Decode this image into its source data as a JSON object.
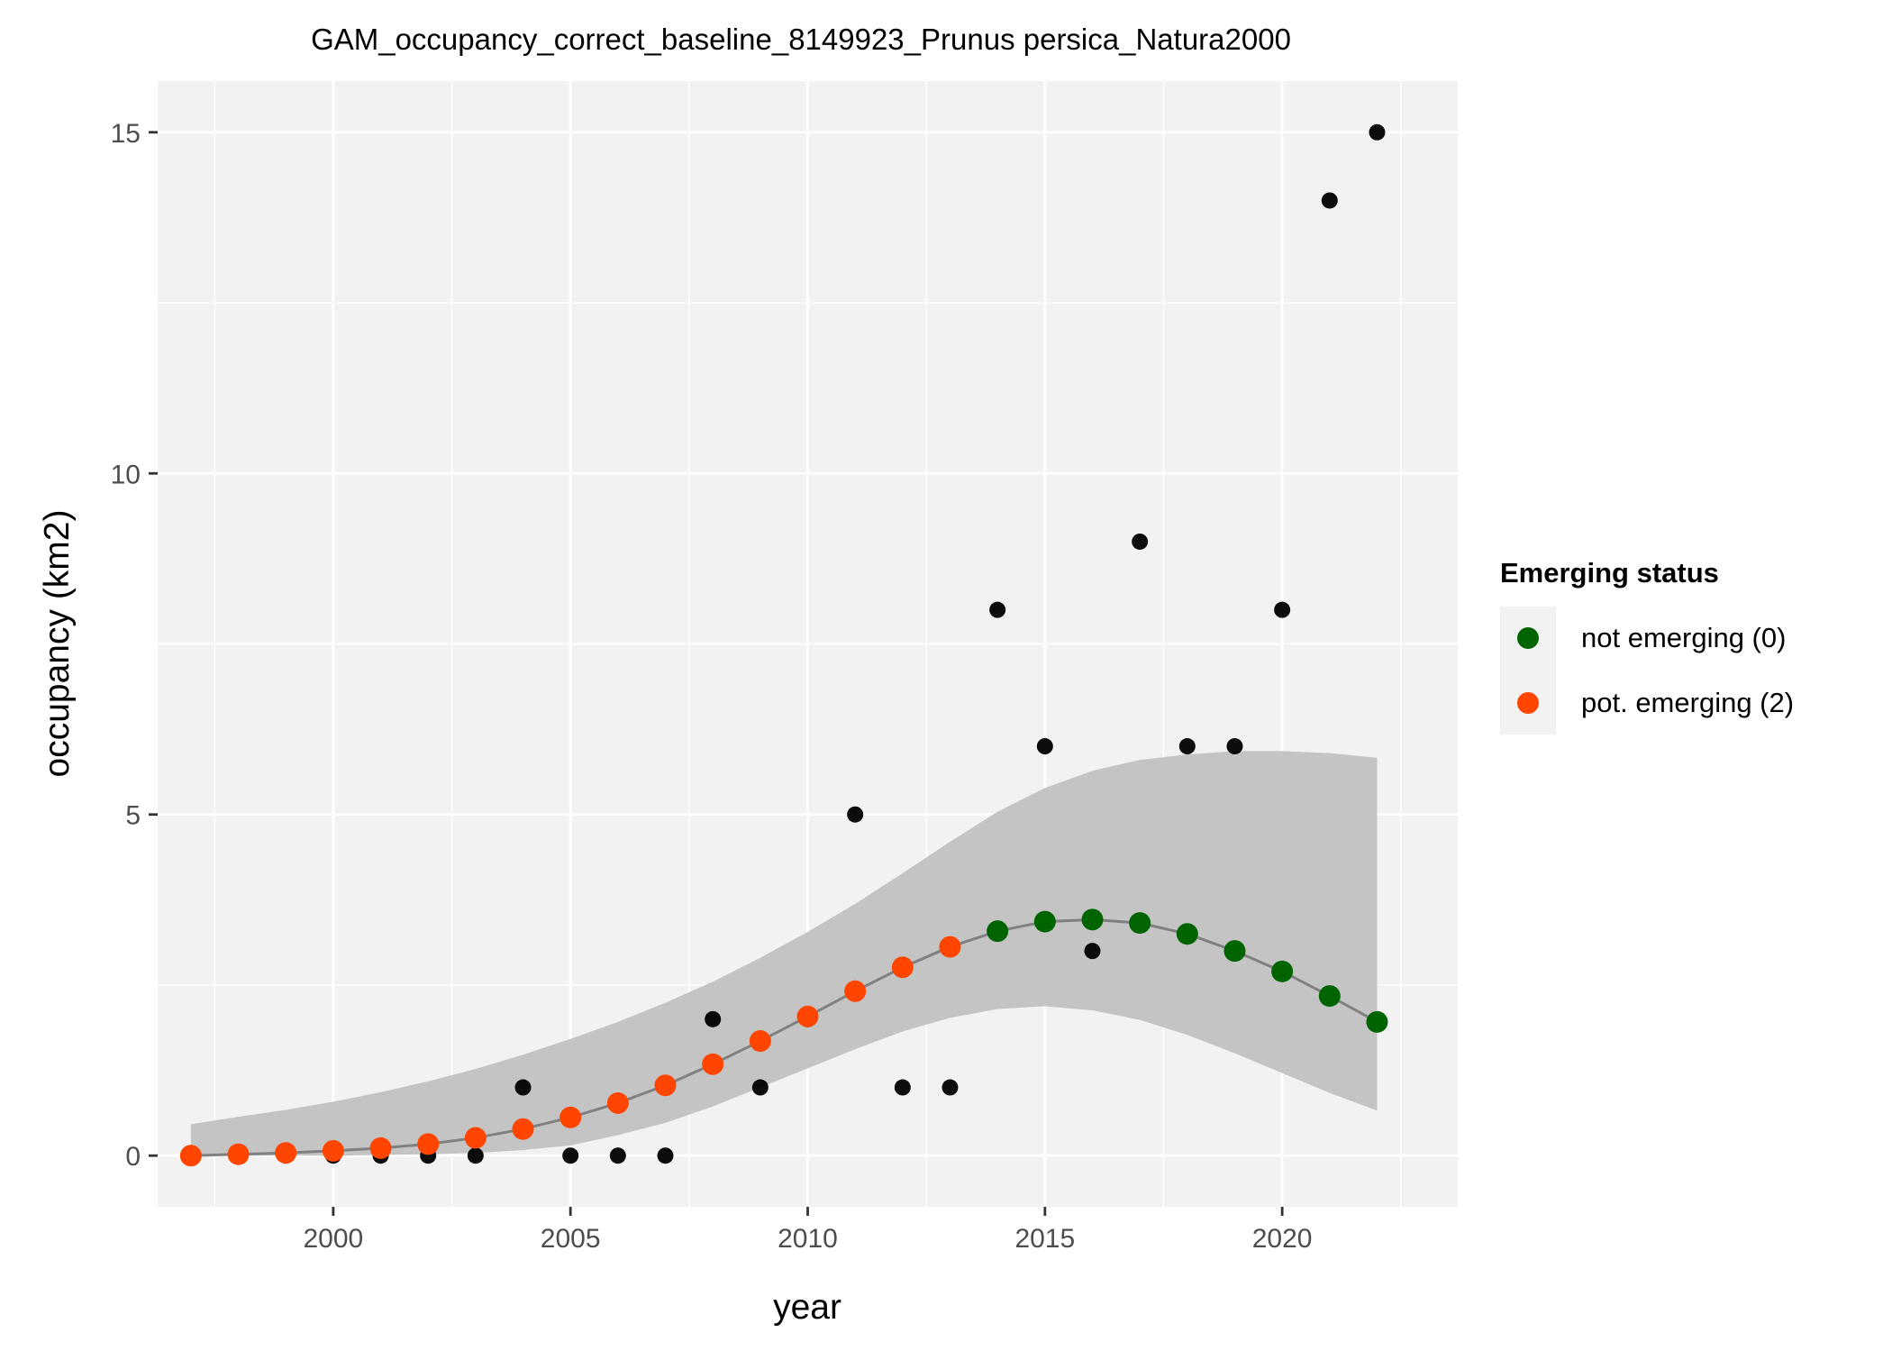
{
  "chart_data": {
    "type": "scatter",
    "title": "GAM_occupancy_correct_baseline_8149923_Prunus persica_Natura2000",
    "xlabel": "year",
    "ylabel": "occupancy (km2)",
    "xlim": [
      1996.3,
      2023.7
    ],
    "ylim": [
      -0.75,
      15.75
    ],
    "x_ticks": [
      2000,
      2005,
      2010,
      2015,
      2020
    ],
    "y_ticks": [
      0,
      5,
      10,
      15
    ],
    "grid": true,
    "legend": {
      "title": "Emerging status",
      "position": "right",
      "items": [
        {
          "label": "not emerging (0)",
          "color": "#006400"
        },
        {
          "label": "pot. emerging (2)",
          "color": "#FF4500"
        }
      ]
    },
    "observed": {
      "color": "#000000",
      "x": [
        1997,
        1998,
        1999,
        2000,
        2001,
        2002,
        2003,
        2004,
        2005,
        2006,
        2007,
        2008,
        2009,
        2010,
        2011,
        2012,
        2013,
        2014,
        2015,
        2016,
        2017,
        2018,
        2019,
        2020,
        2021,
        2022
      ],
      "y": [
        0,
        0,
        0,
        0,
        0,
        0,
        0,
        1,
        0,
        0,
        0,
        2,
        1,
        2,
        5,
        1,
        1,
        8,
        6,
        3,
        9,
        6,
        6,
        8,
        14,
        15
      ]
    },
    "fit": {
      "line_color": "#808080",
      "band_color": "#c4c4c4",
      "x": [
        1997,
        1998,
        1999,
        2000,
        2001,
        2002,
        2003,
        2004,
        2005,
        2006,
        2007,
        2008,
        2009,
        2010,
        2011,
        2012,
        2013,
        2014,
        2015,
        2016,
        2017,
        2018,
        2019,
        2020,
        2021,
        2022
      ],
      "y": [
        0.0,
        0.02,
        0.04,
        0.07,
        0.11,
        0.17,
        0.26,
        0.39,
        0.56,
        0.77,
        1.03,
        1.34,
        1.68,
        2.04,
        2.41,
        2.76,
        3.06,
        3.29,
        3.43,
        3.46,
        3.41,
        3.25,
        3.0,
        2.7,
        2.34,
        1.96
      ],
      "lower": [
        0.0,
        0.0,
        0.0,
        0.0,
        0.01,
        0.02,
        0.04,
        0.08,
        0.15,
        0.3,
        0.48,
        0.72,
        1.0,
        1.28,
        1.56,
        1.82,
        2.02,
        2.15,
        2.19,
        2.13,
        1.99,
        1.77,
        1.5,
        1.21,
        0.92,
        0.66
      ],
      "upper": [
        0.46,
        0.57,
        0.67,
        0.79,
        0.93,
        1.09,
        1.27,
        1.48,
        1.71,
        1.96,
        2.24,
        2.55,
        2.9,
        3.28,
        3.69,
        4.14,
        4.6,
        5.04,
        5.39,
        5.64,
        5.8,
        5.88,
        5.93,
        5.93,
        5.9,
        5.83
      ],
      "status": [
        2,
        2,
        2,
        2,
        2,
        2,
        2,
        2,
        2,
        2,
        2,
        2,
        2,
        2,
        2,
        2,
        2,
        0,
        0,
        0,
        0,
        0,
        0,
        0,
        0,
        0
      ]
    }
  }
}
